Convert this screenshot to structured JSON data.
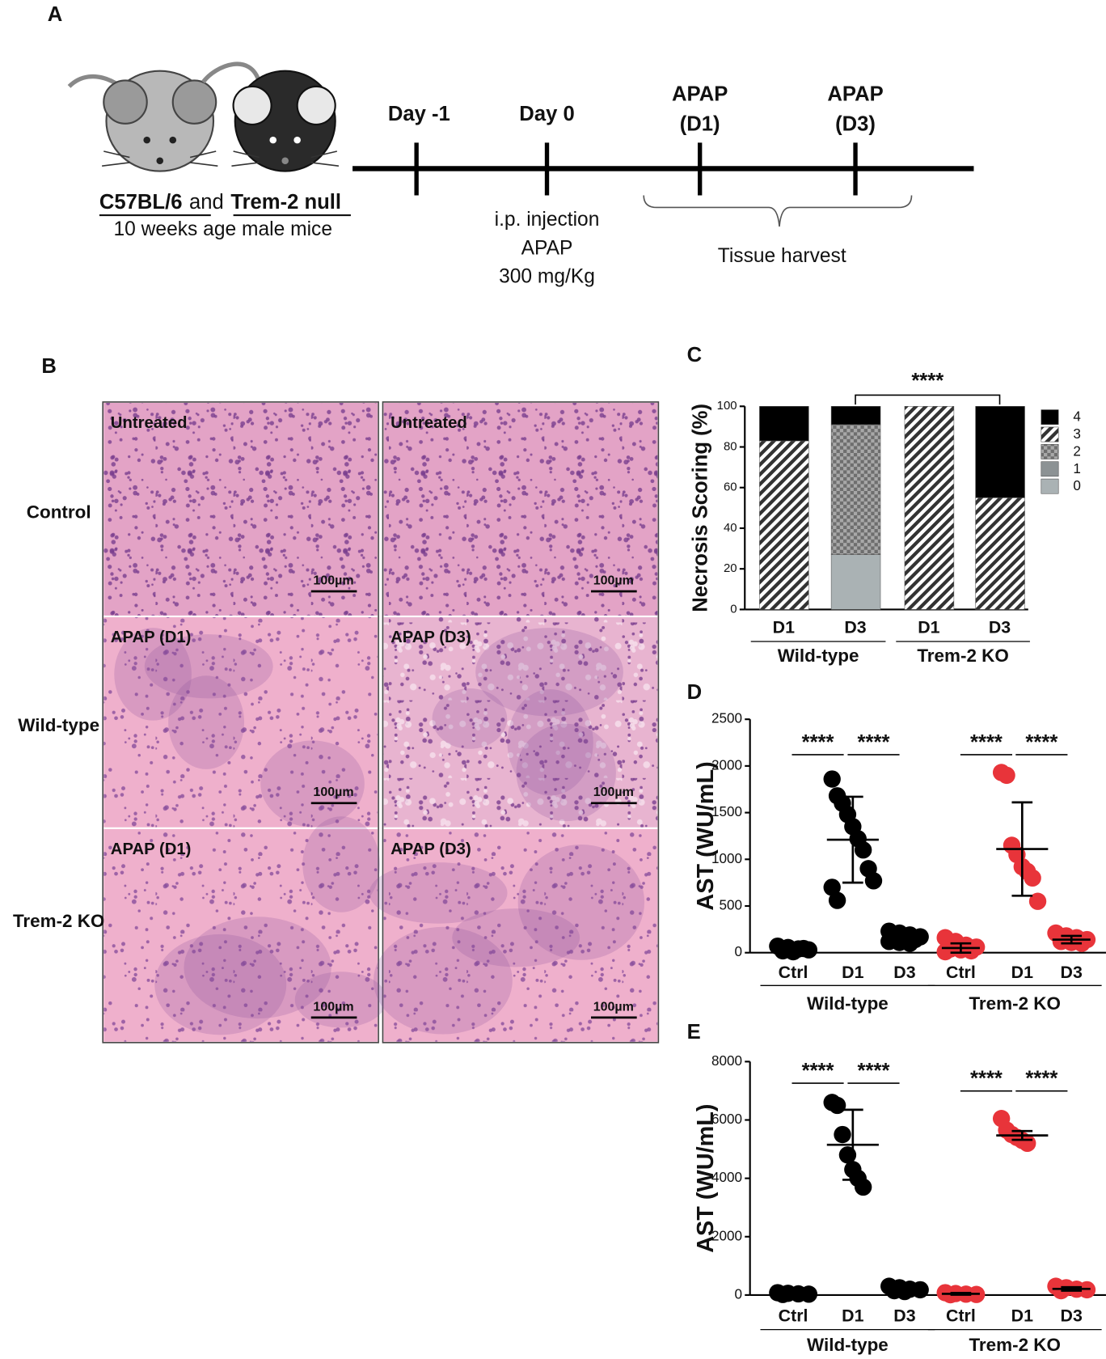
{
  "panel_a": {
    "label": "A",
    "strain_1": "C57BL/6",
    "joiner": "and",
    "strain_2": "Trem-2 null",
    "mice_note": "10 weeks age male mice",
    "events": [
      [
        "Day -1"
      ],
      [
        "Day 0"
      ],
      [
        "APAP",
        "(D1)"
      ],
      [
        "APAP",
        "(D3)"
      ]
    ],
    "injection": [
      "i.p. injection",
      "APAP",
      "300 mg/Kg"
    ],
    "harvest": "Tissue harvest"
  },
  "panel_b": {
    "label": "B",
    "rows": [
      "Control",
      "Wild-type",
      "Trem-2 KO"
    ],
    "tiles": [
      [
        "Untreated",
        "Untreated"
      ],
      [
        "APAP (D1)",
        "APAP (D3)"
      ],
      [
        "APAP (D1)",
        "APAP (D3)"
      ]
    ],
    "scale_bar": "100µm"
  },
  "chart_data": [
    {
      "type": "stacked_bar",
      "panel_label": "C",
      "ylabel": "Necrosis Scoring (%)",
      "categories": [
        "D1",
        "D3",
        "D1",
        "D3"
      ],
      "groups": [
        "Wild-type",
        "Trem-2 KO"
      ],
      "series": [
        {
          "name": "4",
          "color": "#000000",
          "values": [
            17,
            9,
            0,
            45
          ]
        },
        {
          "name": "3",
          "color": "#333333",
          "pattern": "hatch",
          "values": [
            83,
            0,
            100,
            55
          ]
        },
        {
          "name": "2",
          "color": "#6e6e6e",
          "pattern": "crosshatch",
          "values": [
            0,
            64,
            0,
            0
          ]
        },
        {
          "name": "1",
          "color": "#8c9294",
          "values": [
            0,
            0,
            0,
            0
          ]
        },
        {
          "name": "0",
          "color": "#aab2b4",
          "values": [
            0,
            27,
            0,
            0
          ]
        }
      ],
      "ylim": [
        0,
        100
      ],
      "yticks": [
        0,
        20,
        40,
        60,
        80,
        100
      ],
      "annotations": [
        "****"
      ]
    },
    {
      "type": "dot_plot",
      "panel_label": "D",
      "ylabel": "AST (WU/mL)",
      "categories": [
        "Ctrl",
        "D1",
        "D3",
        "Ctrl",
        "D1",
        "D3"
      ],
      "groups": [
        "Wild-type",
        "Trem-2 KO"
      ],
      "group_colors": [
        "#000000",
        "#e8343a"
      ],
      "points": [
        [
          70,
          55,
          40,
          30,
          20,
          10,
          45
        ],
        [
          1860,
          1680,
          1600,
          1480,
          1350,
          1220,
          1100,
          900,
          770,
          700,
          560
        ],
        [
          230,
          210,
          190,
          170,
          160,
          150,
          140,
          120,
          110,
          100
        ],
        [
          160,
          120,
          80,
          60,
          40,
          30,
          20,
          10
        ],
        [
          1930,
          1900,
          1150,
          1050,
          920,
          870,
          800,
          550
        ],
        [
          210,
          180,
          160,
          140,
          120,
          110,
          100
        ]
      ],
      "mean": [
        40,
        1210,
        150,
        50,
        1110,
        140
      ],
      "sd": [
        20,
        460,
        40,
        50,
        500,
        40
      ],
      "ylim": [
        0,
        2500
      ],
      "yticks": [
        0,
        500,
        1000,
        1500,
        2000,
        2500
      ],
      "annotations": [
        "****",
        "****",
        "****",
        "****"
      ]
    },
    {
      "type": "dot_plot",
      "panel_label": "E",
      "ylabel": "AST (WU/mL)",
      "categories": [
        "Ctrl",
        "D1",
        "D3",
        "Ctrl",
        "D1",
        "D3"
      ],
      "groups": [
        "Wild-type",
        "Trem-2 KO"
      ],
      "group_colors": [
        "#000000",
        "#e8343a"
      ],
      "points": [
        [
          80,
          60,
          40,
          30,
          20
        ],
        [
          6600,
          6500,
          5500,
          4800,
          4300,
          4000,
          3700
        ],
        [
          300,
          250,
          200,
          180,
          150,
          120
        ],
        [
          80,
          50,
          30,
          20,
          10
        ],
        [
          6050,
          5650,
          5500,
          5400,
          5300,
          5200
        ],
        [
          300,
          250,
          200,
          180,
          150
        ]
      ],
      "mean": [
        50,
        5150,
        200,
        40,
        5470,
        210
      ],
      "sd": [
        25,
        1200,
        60,
        30,
        150,
        60
      ],
      "ylim": [
        0,
        8000
      ],
      "yticks": [
        0,
        2000,
        4000,
        6000,
        8000
      ],
      "annotations": [
        "****",
        "****",
        "****",
        "****"
      ]
    }
  ]
}
